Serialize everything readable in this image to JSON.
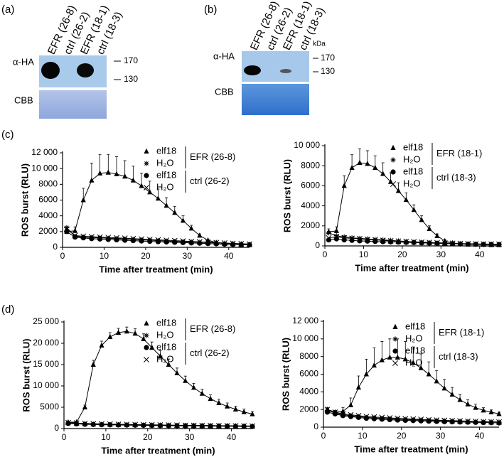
{
  "panel_labels": [
    "(a)",
    "(b)",
    "(c)",
    "(d)"
  ],
  "blots": [
    {
      "lanes": [
        "EFR (26-8)",
        "ctrl (26-2)",
        "EFR (18-1)",
        "ctrl (18-3)"
      ],
      "rows": [
        "α-HA",
        "CBB"
      ],
      "size_markers": [
        "170",
        "130"
      ]
    },
    {
      "lanes": [
        "EFR (26-8)",
        "ctrl (26-2)",
        "EFR (18-1)",
        "ctrl (18-3)"
      ],
      "rows": [
        "α-HA",
        "CBB"
      ],
      "unit": "kDa",
      "size_markers": [
        "170",
        "130"
      ]
    }
  ],
  "chart_data": [
    {
      "type": "line",
      "xlabel": "Time after treatment (min)",
      "ylabel": "ROS burst (RLU)",
      "xlim": [
        0,
        45
      ],
      "xticks": [
        0,
        10,
        20,
        30,
        40
      ],
      "ylim": [
        0,
        12000
      ],
      "yticks": [
        0,
        2000,
        4000,
        6000,
        8000,
        {
          "value": 10000,
          "label": "10 000"
        },
        {
          "value": 12000,
          "label": "12 000"
        }
      ],
      "legend": "upper right",
      "legend_groups": [
        "EFR (26-8)",
        "ctrl (26-2)"
      ],
      "x": [
        1,
        3,
        5,
        7,
        9,
        11,
        13,
        15,
        17,
        19,
        21,
        23,
        25,
        27,
        29,
        31,
        33,
        35,
        37,
        39,
        41,
        43,
        45
      ],
      "series": [
        {
          "name": "elf18",
          "marker": "triangle",
          "color": "#000000",
          "values": [
            2000,
            2100,
            6000,
            8500,
            9400,
            9500,
            9300,
            9000,
            8500,
            7800,
            7000,
            6200,
            5300,
            4400,
            3400,
            2400,
            1500,
            900,
            600,
            450,
            400,
            350,
            300
          ],
          "errors": [
            300,
            500,
            1500,
            2200,
            2400,
            2300,
            2200,
            2000,
            1800,
            1600,
            1400,
            1200,
            1000,
            800,
            600,
            400,
            200,
            100,
            80,
            60,
            50,
            50,
            50
          ]
        },
        {
          "name": "H₂O",
          "marker": "asterisk",
          "color": "#000000",
          "values": [
            2500,
            1400,
            1300,
            1250,
            1200,
            1150,
            1100,
            1050,
            1000,
            950,
            900,
            850,
            800,
            760,
            720,
            680,
            640,
            600,
            560,
            520,
            480,
            440,
            400
          ]
        },
        {
          "name": "elf18",
          "marker": "circle",
          "color": "#000000",
          "values": [
            2000,
            1300,
            1200,
            1100,
            1050,
            1000,
            950,
            900,
            850,
            800,
            760,
            720,
            680,
            640,
            600,
            560,
            520,
            480,
            440,
            400,
            370,
            340,
            320
          ]
        },
        {
          "name": "H₂O",
          "marker": "cross",
          "color": "#000000",
          "values": [
            2300,
            1500,
            1400,
            1350,
            1300,
            1250,
            1200,
            1150,
            1100,
            1050,
            1000,
            950,
            900,
            850,
            800,
            750,
            700,
            650,
            600,
            550,
            500,
            460,
            420
          ]
        }
      ]
    },
    {
      "type": "line",
      "xlabel": "Time after treatment (min)",
      "ylabel": "ROS burst (RLU)",
      "xlim": [
        0,
        45
      ],
      "xticks": [
        0,
        10,
        20,
        30,
        40
      ],
      "ylim": [
        0,
        10000
      ],
      "yticks": [
        0,
        2000,
        4000,
        6000,
        8000,
        {
          "value": 10000,
          "label": "10 000"
        }
      ],
      "legend": "upper right",
      "legend_groups": [
        "EFR (18-1)",
        "ctrl (18-3)"
      ],
      "x": [
        1,
        3,
        5,
        7,
        9,
        11,
        13,
        15,
        17,
        19,
        21,
        23,
        25,
        27,
        29,
        31,
        33,
        35,
        37,
        39,
        41,
        43,
        45
      ],
      "series": [
        {
          "name": "elf18",
          "marker": "triangle",
          "color": "#000000",
          "values": [
            1400,
            1500,
            6000,
            7800,
            8300,
            8200,
            7800,
            7200,
            6400,
            5500,
            4600,
            3600,
            2600,
            1700,
            1000,
            500,
            300,
            200,
            150,
            150,
            120,
            100,
            100
          ],
          "errors": [
            300,
            400,
            1000,
            1300,
            1400,
            1300,
            1200,
            1100,
            900,
            800,
            700,
            500,
            400,
            300,
            200,
            100,
            50,
            50,
            30,
            30,
            30,
            30,
            30
          ]
        },
        {
          "name": "H₂O",
          "marker": "asterisk",
          "color": "#000000",
          "values": [
            1300,
            1000,
            900,
            800,
            750,
            700,
            650,
            600,
            550,
            500,
            450,
            400,
            350,
            300,
            280,
            250,
            220,
            200,
            180,
            160,
            150,
            140,
            130
          ]
        },
        {
          "name": "elf18",
          "marker": "circle",
          "color": "#000000",
          "values": [
            600,
            700,
            600,
            550,
            500,
            480,
            450,
            420,
            400,
            380,
            350,
            330,
            300,
            280,
            260,
            240,
            220,
            200,
            180,
            170,
            160,
            150,
            140
          ]
        },
        {
          "name": "H₂O",
          "marker": "cross",
          "color": "#000000",
          "values": [
            800,
            900,
            800,
            750,
            700,
            650,
            600,
            550,
            500,
            470,
            440,
            410,
            380,
            350,
            320,
            290,
            260,
            240,
            220,
            200,
            190,
            180,
            170
          ]
        }
      ]
    },
    {
      "type": "line",
      "xlabel": "Time after treatment (min)",
      "ylabel": "ROS burst (RLU)",
      "xlim": [
        0,
        45
      ],
      "xticks": [
        0,
        10,
        20,
        30,
        40
      ],
      "ylim": [
        0,
        25000
      ],
      "yticks": [
        0,
        5000,
        {
          "value": 10000,
          "label": "10 000"
        },
        {
          "value": 15000,
          "label": "15 000"
        },
        {
          "value": 20000,
          "label": "20 000"
        },
        {
          "value": 25000,
          "label": "25 000"
        }
      ],
      "legend": "upper right",
      "legend_groups": [
        "EFR (26-8)",
        "ctrl (26-2)"
      ],
      "x": [
        1,
        3,
        5,
        7,
        9,
        11,
        13,
        15,
        17,
        19,
        21,
        23,
        25,
        27,
        29,
        31,
        33,
        35,
        37,
        39,
        41,
        43,
        45
      ],
      "series": [
        {
          "name": "elf18",
          "marker": "triangle",
          "color": "#000000",
          "values": [
            1500,
            1500,
            5000,
            15000,
            19500,
            21500,
            22500,
            22800,
            22300,
            21000,
            19000,
            17000,
            15000,
            13000,
            11200,
            9600,
            8200,
            7000,
            6000,
            5200,
            4500,
            3900,
            3400
          ],
          "errors": [
            100,
            100,
            500,
            1000,
            1000,
            1000,
            1000,
            1000,
            1100,
            1200,
            1300,
            1300,
            1300,
            1200,
            1100,
            1000,
            1000,
            900,
            900,
            800,
            700,
            700,
            600
          ]
        },
        {
          "name": "H₂O",
          "marker": "asterisk",
          "color": "#000000",
          "values": [
            1300,
            1200,
            1100,
            1050,
            1000,
            950,
            900,
            880,
            860,
            840,
            820,
            800,
            780,
            760,
            740,
            720,
            700,
            680,
            660,
            640,
            620,
            600,
            580
          ]
        },
        {
          "name": "elf18",
          "marker": "circle",
          "color": "#000000",
          "values": [
            1200,
            1100,
            1000,
            950,
            900,
            870,
            840,
            810,
            780,
            750,
            720,
            700,
            680,
            660,
            640,
            620,
            600,
            580,
            560,
            540,
            520,
            500,
            490
          ]
        },
        {
          "name": "H₂O",
          "marker": "cross",
          "color": "#000000",
          "values": [
            1400,
            1300,
            1200,
            1150,
            1100,
            1050,
            1000,
            970,
            940,
            910,
            880,
            850,
            820,
            790,
            760,
            740,
            720,
            700,
            680,
            660,
            640,
            620,
            600
          ]
        }
      ]
    },
    {
      "type": "line",
      "xlabel": "Time after treatment (min)",
      "ylabel": "ROS burst (RLU)",
      "xlim": [
        0,
        45
      ],
      "xticks": [
        0,
        10,
        20,
        30,
        40
      ],
      "ylim": [
        0,
        12000
      ],
      "yticks": [
        0,
        2000,
        4000,
        6000,
        8000,
        {
          "value": 10000,
          "label": "10 000"
        },
        {
          "value": 12000,
          "label": "12 000"
        }
      ],
      "legend": "upper right",
      "legend_groups": [
        "EFR (18-1)",
        "ctrl (18-3)"
      ],
      "x": [
        1,
        3,
        5,
        7,
        9,
        11,
        13,
        15,
        17,
        19,
        21,
        23,
        25,
        27,
        29,
        31,
        33,
        35,
        37,
        39,
        41,
        43,
        45
      ],
      "series": [
        {
          "name": "elf18",
          "marker": "triangle",
          "color": "#000000",
          "values": [
            2000,
            1700,
            1800,
            2500,
            4500,
            6000,
            7000,
            7600,
            7900,
            7900,
            7700,
            7300,
            6700,
            6000,
            5200,
            4400,
            3700,
            3100,
            2600,
            2200,
            1900,
            1700,
            1500
          ],
          "errors": [
            200,
            200,
            400,
            800,
            1300,
            1700,
            2000,
            2100,
            2100,
            2100,
            2000,
            1800,
            1600,
            1400,
            1200,
            1000,
            800,
            600,
            500,
            400,
            300,
            250,
            200
          ]
        },
        {
          "name": "H₂O",
          "marker": "asterisk",
          "color": "#000000",
          "values": [
            1900,
            1600,
            1400,
            1300,
            1200,
            1100,
            1050,
            1000,
            950,
            900,
            870,
            840,
            810,
            780,
            750,
            720,
            700,
            680,
            660,
            640,
            620,
            600,
            580
          ]
        },
        {
          "name": "elf18",
          "marker": "circle",
          "color": "#000000",
          "values": [
            1700,
            1500,
            1300,
            1200,
            1100,
            1000,
            950,
            900,
            850,
            800,
            770,
            740,
            710,
            680,
            650,
            620,
            600,
            580,
            560,
            540,
            520,
            500,
            480
          ]
        },
        {
          "name": "H₂O",
          "marker": "cross",
          "color": "#000000",
          "values": [
            2000,
            1700,
            1500,
            1400,
            1300,
            1200,
            1150,
            1100,
            1050,
            1000,
            960,
            920,
            880,
            840,
            800,
            770,
            740,
            710,
            680,
            650,
            620,
            600,
            580
          ]
        }
      ]
    }
  ]
}
